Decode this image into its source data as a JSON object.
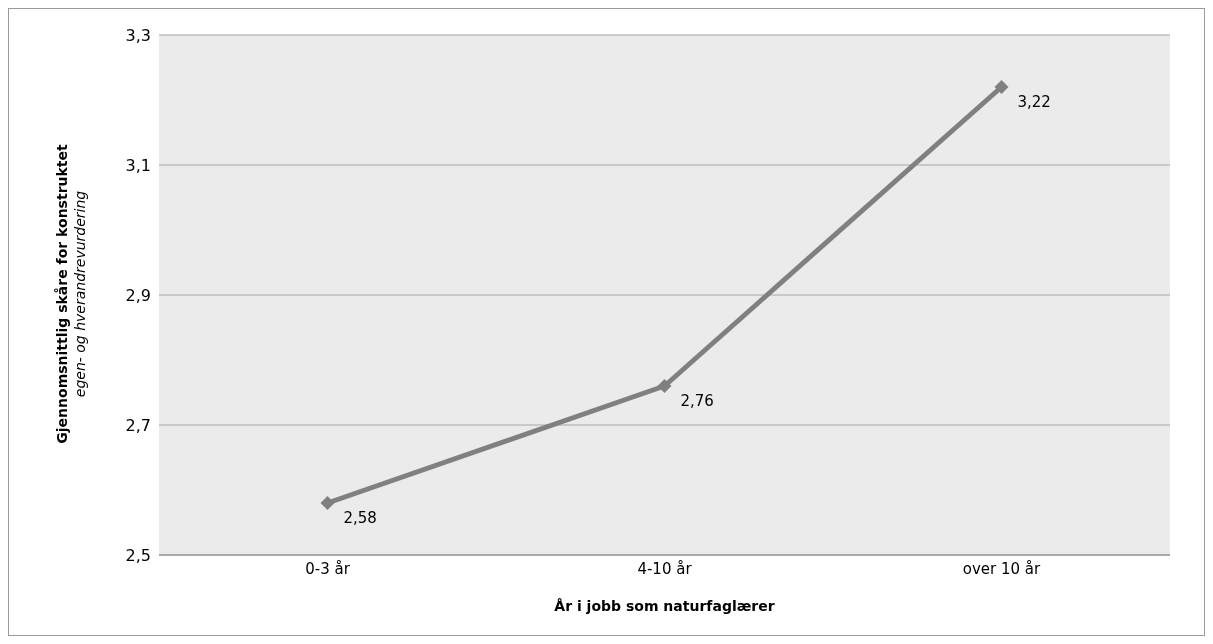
{
  "chart_data": {
    "type": "line",
    "xlabel": "År i jobb som naturfaglærer",
    "ylabel": "Gjennomsnittlig skåre for konstruktet\negen- og hverandrevurdering",
    "categories": [
      "0-3 år",
      "4-10 år",
      "over 10 år"
    ],
    "series": [
      {
        "color": "#808080",
        "values": [
          2.58,
          2.76,
          3.22
        ],
        "value_labels": [
          "2,58",
          "2,76",
          "3,22"
        ]
      }
    ],
    "ylim": [
      2.5,
      3.3
    ],
    "yticks": [
      {
        "value": 2.5,
        "label": "2,5"
      },
      {
        "value": 2.7,
        "label": "2,7"
      },
      {
        "value": 2.9,
        "label": "2,9"
      },
      {
        "value": 3.1,
        "label": "3,1"
      },
      {
        "value": 3.3,
        "label": "3,3"
      }
    ],
    "grid": "y",
    "legend": false,
    "marker": "diamond",
    "line_style": "solid"
  }
}
